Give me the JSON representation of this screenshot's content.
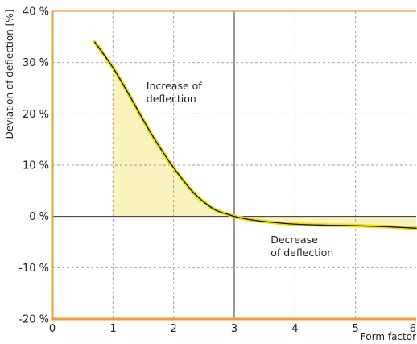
{
  "chart_data": {
    "type": "line",
    "title": "",
    "xlabel": "Form factor",
    "ylabel": "Deviation of deflection [%]",
    "xlim": [
      0,
      6
    ],
    "ylim": [
      -20,
      40
    ],
    "x_ticks": [
      {
        "value": 0,
        "label": "0"
      },
      {
        "value": 1,
        "label": "1"
      },
      {
        "value": 2,
        "label": "2"
      },
      {
        "value": 3,
        "label": "3"
      },
      {
        "value": 4,
        "label": "4"
      },
      {
        "value": 5,
        "label": "5"
      },
      {
        "value": 6,
        "label": "6"
      }
    ],
    "y_ticks": [
      {
        "value": 40,
        "label": "40 %"
      },
      {
        "value": 30,
        "label": "30 %"
      },
      {
        "value": 20,
        "label": "20 %"
      },
      {
        "value": 10,
        "label": "10 %"
      },
      {
        "value": 0,
        "label": "0 %"
      },
      {
        "value": -10,
        "label": "-10 %"
      },
      {
        "value": -20,
        "label": "-20 %"
      }
    ],
    "grid": true,
    "grid_style": "dashed",
    "reference_lines": {
      "x": 3,
      "y": 0
    },
    "series": [
      {
        "x": [
          0.7,
          1.0,
          1.3,
          1.5,
          1.7,
          2.0,
          2.3,
          2.5,
          2.7,
          2.9,
          3.0,
          3.2,
          3.5,
          4.0,
          4.5,
          5.0,
          5.5,
          6.0
        ],
        "y": [
          34.0,
          29.0,
          23.0,
          18.8,
          14.8,
          9.5,
          5.0,
          2.8,
          1.2,
          0.4,
          0.0,
          -0.5,
          -1.0,
          -1.5,
          -1.7,
          -1.8,
          -2.0,
          -2.3
        ]
      }
    ],
    "shaded_region": {
      "x_from": 1,
      "x_to": 6,
      "between": "series and y=0"
    },
    "annotations": [
      {
        "lines": [
          "Increase of",
          "deflection"
        ],
        "x": 1.55,
        "y": 24.8
      },
      {
        "lines": [
          "Decrease",
          "of deflection"
        ],
        "x": 3.6,
        "y": -5.2
      }
    ],
    "colors": {
      "frame": "#ea9d3a",
      "curve": "#111111",
      "curve_glow": "#e8dc1a",
      "fill": "#faf3be",
      "grid": "#9a9a9a",
      "reference": "#333333"
    }
  }
}
